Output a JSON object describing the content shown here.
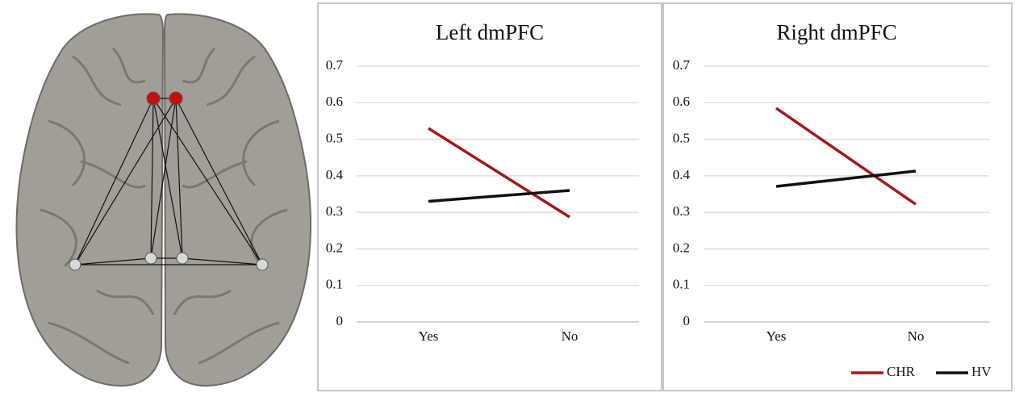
{
  "chart_data": [
    {
      "type": "line",
      "title": "Left dmPFC",
      "categories": [
        "Yes",
        "No"
      ],
      "series": [
        {
          "color": "#a3191b",
          "values": [
            0.53,
            0.287
          ]
        },
        {
          "color": "#111111",
          "values": [
            0.33,
            0.36
          ]
        }
      ],
      "ylim": [
        0,
        0.7
      ],
      "yticks": [
        0,
        0.1,
        0.2,
        0.3,
        0.4,
        0.5,
        0.6,
        0.7
      ],
      "grid": true
    },
    {
      "type": "line",
      "title": "Right dmPFC",
      "categories": [
        "Yes",
        "No"
      ],
      "series": [
        {
          "name": "CHR",
          "color": "#a3191b",
          "values": [
            0.585,
            0.322
          ]
        },
        {
          "name": "HV",
          "color": "#111111",
          "values": [
            0.371,
            0.413
          ]
        }
      ],
      "ylim": [
        0,
        0.7
      ],
      "yticks": [
        0,
        0.1,
        0.2,
        0.3,
        0.4,
        0.5,
        0.6,
        0.7
      ],
      "grid": true,
      "legend": "bottom-right"
    }
  ]
}
